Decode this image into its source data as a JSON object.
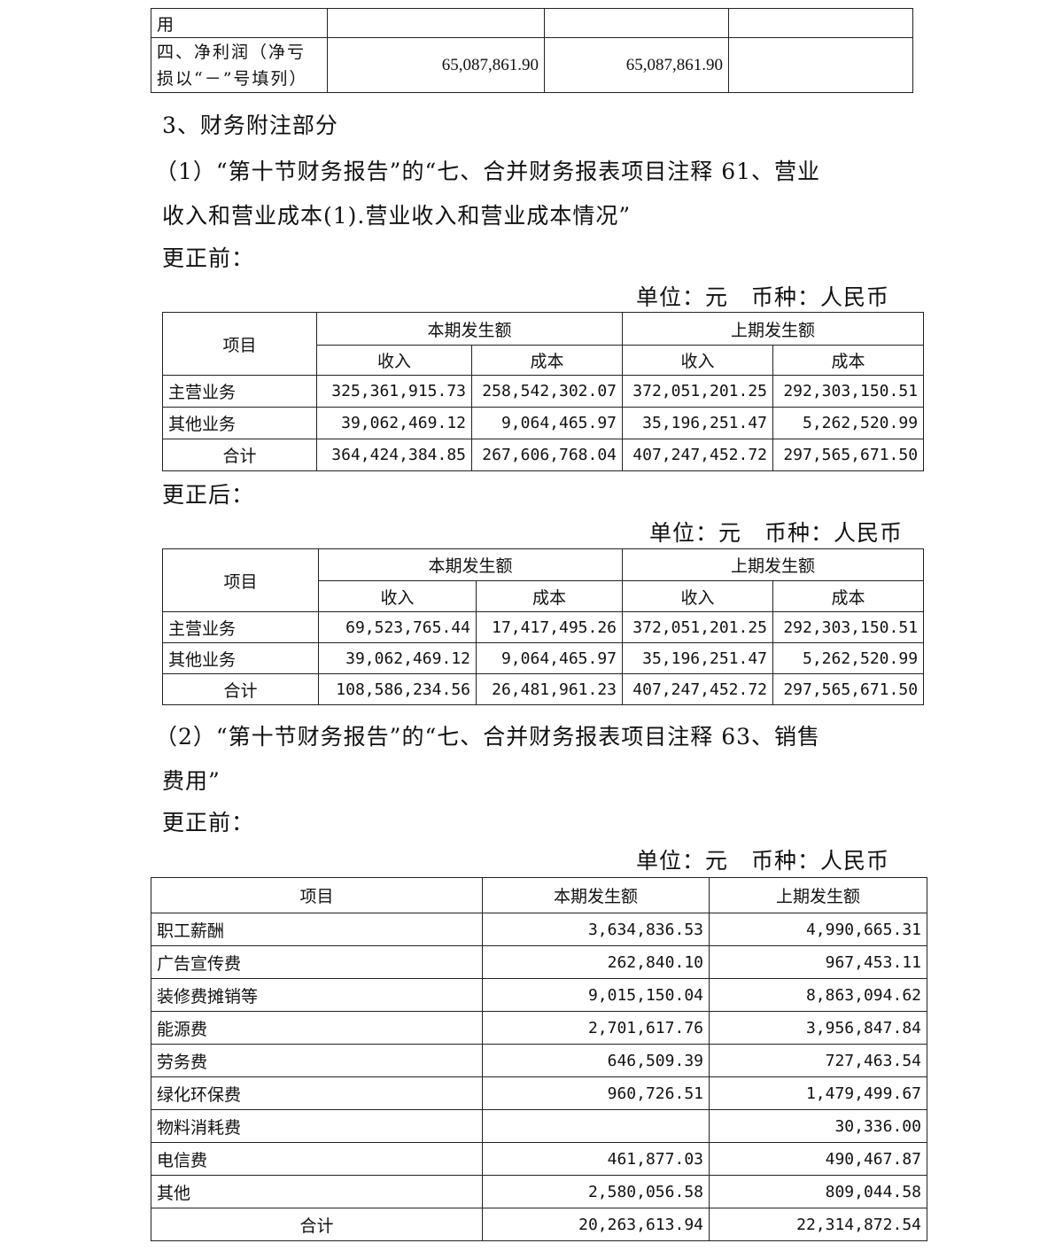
{
  "top_table": {
    "rows": [
      [
        "用",
        "",
        "",
        ""
      ],
      [
        "四、净利润（净亏损以“－”号填列）",
        "65,087,861.90",
        "65,087,861.90",
        ""
      ]
    ]
  },
  "section_title": "3、财务附注部分",
  "note1": {
    "line1": "（1）“第十节财务报告”的“七、合并财务报表项目注释 61、营业",
    "line2": "收入和营业成本(1).营业收入和营业成本情况”",
    "before_label": "更正前：",
    "after_label": "更正后：",
    "unit_before": "单位：元　币种：人民币",
    "unit_after": "单位：元　币种：人民币",
    "headers": {
      "item": "项目",
      "current": "本期发生额",
      "previous": "上期发生额",
      "revenue": "收入",
      "cost": "成本"
    },
    "before_rows": [
      [
        "主营业务",
        "325,361,915.73",
        "258,542,302.07",
        "372,051,201.25",
        "292,303,150.51"
      ],
      [
        "其他业务",
        "39,062,469.12",
        "9,064,465.97",
        "35,196,251.47",
        "5,262,520.99"
      ],
      [
        "合计",
        "364,424,384.85",
        "267,606,768.04",
        "407,247,452.72",
        "297,565,671.50"
      ]
    ],
    "after_rows": [
      [
        "主营业务",
        "69,523,765.44",
        "17,417,495.26",
        "372,051,201.25",
        "292,303,150.51"
      ],
      [
        "其他业务",
        "39,062,469.12",
        "9,064,465.97",
        "35,196,251.47",
        "5,262,520.99"
      ],
      [
        "合计",
        "108,586,234.56",
        "26,481,961.23",
        "407,247,452.72",
        "297,565,671.50"
      ]
    ]
  },
  "note2": {
    "line1": "（2）“第十节财务报告”的“七、合并财务报表项目注释 63、销售",
    "line2": "费用”",
    "before_label": "更正前：",
    "unit": "单位：元　币种：人民币",
    "headers": [
      "项目",
      "本期发生额",
      "上期发生额"
    ],
    "rows": [
      [
        "职工薪酬",
        "3,634,836.53",
        "4,990,665.31"
      ],
      [
        "广告宣传费",
        "262,840.10",
        "967,453.11"
      ],
      [
        "装修费摊销等",
        "9,015,150.04",
        "8,863,094.62"
      ],
      [
        "能源费",
        "2,701,617.76",
        "3,956,847.84"
      ],
      [
        "劳务费",
        "646,509.39",
        "727,463.54"
      ],
      [
        "绿化环保费",
        "960,726.51",
        "1,479,499.67"
      ],
      [
        "物料消耗费",
        "",
        "30,336.00"
      ],
      [
        "电信费",
        "461,877.03",
        "490,467.87"
      ],
      [
        "其他",
        "2,580,056.58",
        "809,044.58"
      ],
      [
        "合计",
        "20,263,613.94",
        "22,314,872.54"
      ]
    ]
  }
}
